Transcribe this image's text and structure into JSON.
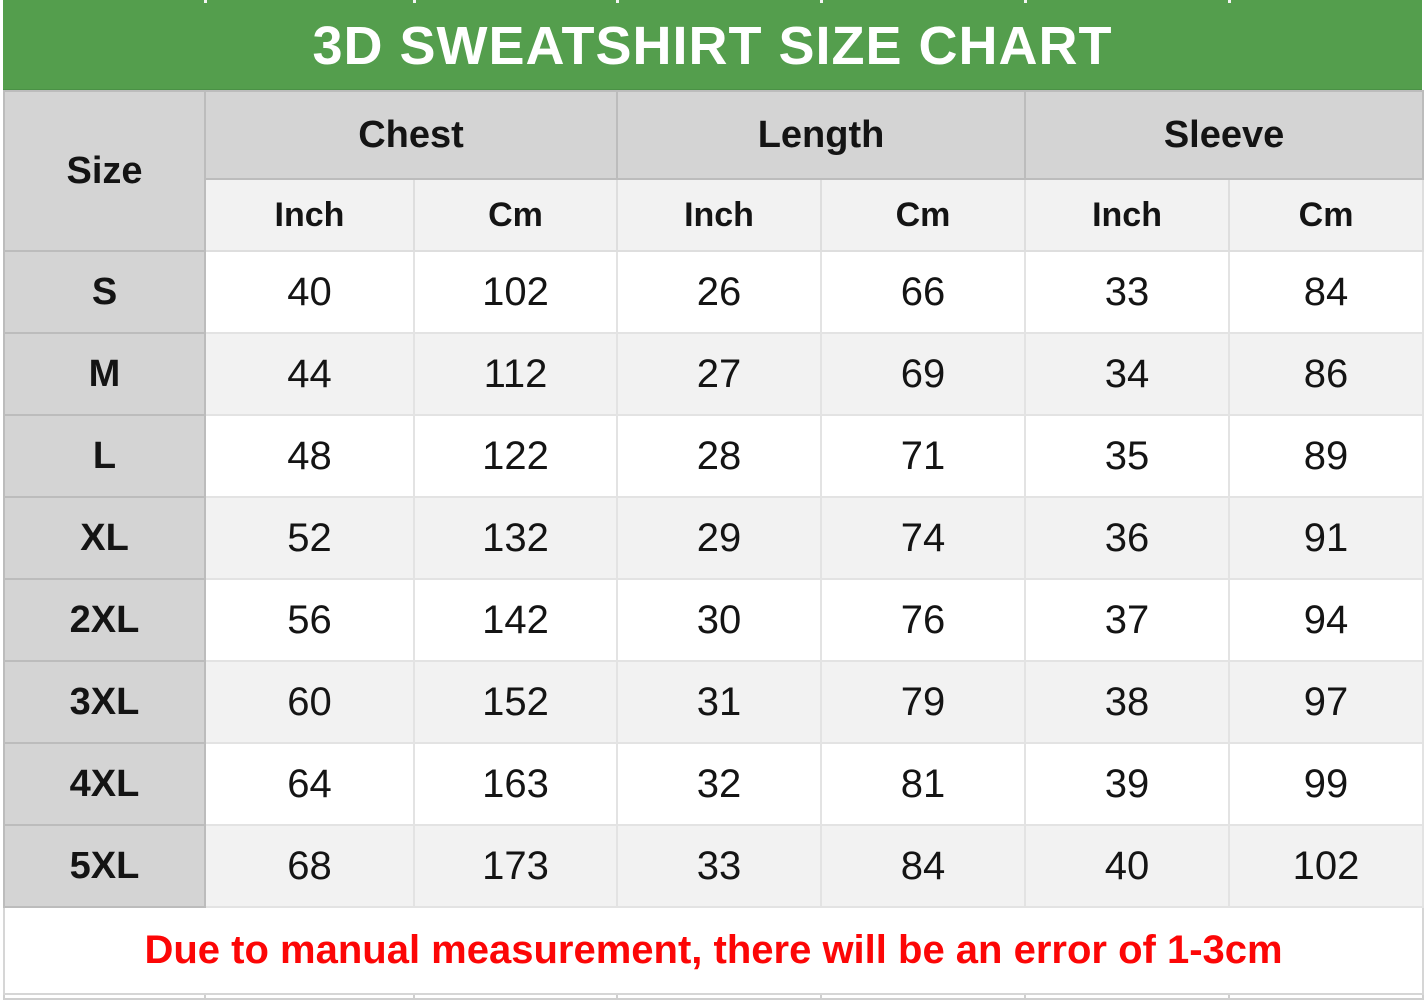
{
  "header": {
    "title": "3D SWEATSHIRT SIZE CHART"
  },
  "table": {
    "size_header": "Size",
    "groups": [
      "Chest",
      "Length",
      "Sleeve"
    ],
    "units": [
      "Inch",
      "Cm",
      "Inch",
      "Cm",
      "Inch",
      "Cm"
    ]
  },
  "note": {
    "text": "Due to manual measurement, there will be an error of 1-3cm"
  },
  "colors": {
    "title_green": "#549e4d",
    "title_text": "#ffffff",
    "header_gray": "#d4d4d4",
    "subheader_gray": "#f2f2f2",
    "row_white": "#ffffff",
    "row_alt_gray": "#f2f2f2",
    "note_red": "#fc0606",
    "text_black": "#141414"
  },
  "chart_data": {
    "type": "table",
    "title": "3D SWEATSHIRT SIZE CHART",
    "column_groups": [
      "Chest",
      "Length",
      "Sleeve"
    ],
    "columns": [
      "Size",
      "Chest Inch",
      "Chest Cm",
      "Length Inch",
      "Length Cm",
      "Sleeve Inch",
      "Sleeve Cm"
    ],
    "rows": [
      [
        "S",
        40,
        102,
        26,
        66,
        33,
        84
      ],
      [
        "M",
        44,
        112,
        27,
        69,
        34,
        86
      ],
      [
        "L",
        48,
        122,
        28,
        71,
        35,
        89
      ],
      [
        "XL",
        52,
        132,
        29,
        74,
        36,
        91
      ],
      [
        "2XL",
        56,
        142,
        30,
        76,
        37,
        94
      ],
      [
        "3XL",
        60,
        152,
        31,
        79,
        38,
        97
      ],
      [
        "4XL",
        64,
        163,
        32,
        81,
        39,
        99
      ],
      [
        "5XL",
        68,
        173,
        33,
        84,
        40,
        102
      ]
    ],
    "note": "Due to manual measurement, there will be an error of 1-3cm"
  }
}
